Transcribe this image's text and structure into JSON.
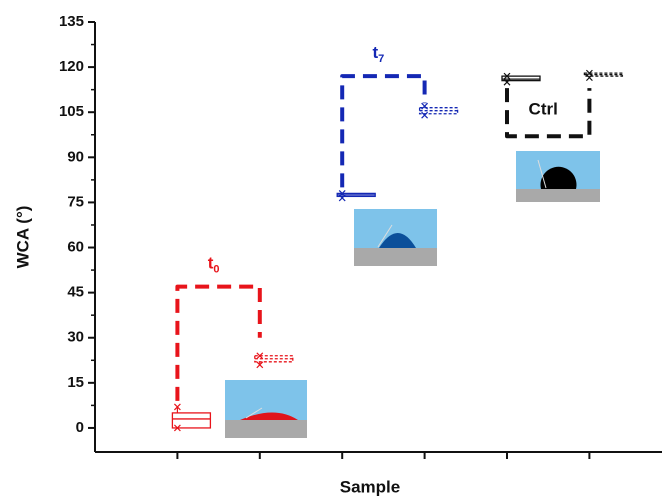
{
  "chart_data": {
    "type": "box",
    "ylabel": "WCA (°)",
    "xlabel": "Sample",
    "categories": [
      null,
      null,
      null,
      null,
      null,
      null
    ],
    "ylim": [
      -8,
      135
    ],
    "yticks": [
      0,
      15,
      30,
      45,
      60,
      75,
      90,
      105,
      120,
      135
    ],
    "boxes": [
      {
        "min": 0,
        "q1": 0,
        "median": 3,
        "q3": 5,
        "max": 7,
        "color": "#e8141b",
        "dashed": false
      },
      {
        "min": 21,
        "q1": 22,
        "median": 23,
        "q3": 24,
        "max": 24,
        "color": "#e8141b",
        "dashed": true
      },
      {
        "min": 76.5,
        "q1": 77,
        "median": 77.5,
        "q3": 78,
        "max": 78,
        "color": "#1428b4",
        "dashed": false
      },
      {
        "min": 104,
        "q1": 104.5,
        "median": 105.5,
        "q3": 106.5,
        "max": 107,
        "color": "#1428b4",
        "dashed": true
      },
      {
        "min": 115,
        "q1": 115.5,
        "median": 116,
        "q3": 117,
        "max": 117,
        "color": "#111111",
        "dashed": false
      },
      {
        "min": 116.5,
        "q1": 117,
        "median": 117.5,
        "q3": 118,
        "max": 118,
        "color": "#111111",
        "dashed": true
      }
    ],
    "brackets": [
      {
        "text": "t",
        "sub": "0",
        "from": 0,
        "to": 1,
        "level": 47,
        "ends": [
          9,
          30
        ],
        "color": "#e8141b"
      },
      {
        "text": "t",
        "sub": "7",
        "from": 2,
        "to": 3,
        "level": 117,
        "ends": [
          80,
          108
        ],
        "color": "#1428b4"
      },
      {
        "text": "Ctrl",
        "from": 4,
        "to": 5,
        "level": 97,
        "ends": [
          113,
          113
        ],
        "color": "#111111"
      }
    ]
  }
}
